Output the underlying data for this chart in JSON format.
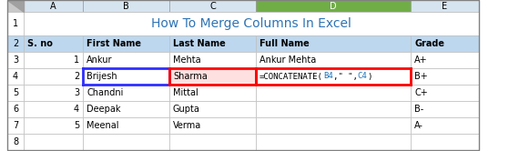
{
  "title": "How To Merge Columns In Excel",
  "title_color": "#2E74B5",
  "col_headers": [
    "S. no",
    "First Name",
    "Last Name",
    "Full Name",
    "Grade"
  ],
  "rows": [
    [
      "1",
      "Ankur",
      "Mehta",
      "Ankur Mehta",
      "A+"
    ],
    [
      "2",
      "Brijesh",
      "Sharma",
      "=CONCATENATE(B4,\" \",C4)",
      "B+"
    ],
    [
      "3",
      "Chandni",
      "Mittal",
      "",
      "C+"
    ],
    [
      "4",
      "Deepak",
      "Gupta",
      "",
      "B-"
    ],
    [
      "5",
      "Meenal",
      "Verma",
      "",
      "A-"
    ]
  ],
  "col_letters": [
    "A",
    "B",
    "C",
    "D",
    "E"
  ],
  "col_headers_list": [
    "S. no",
    "First Name",
    "Last Name",
    "Full Name",
    "Grade"
  ],
  "header_bg": "#BDD7EE",
  "grid_color": "#BFBFBF",
  "col_d_header_bg": "#70AD47",
  "col_letter_bg": "#D6E4F0",
  "row4_b_border": "#2E2EFF",
  "row4_c_bg": "#FFE0E0",
  "row4_c_border": "#FF0000",
  "formula_ref_color": "#1E72BB"
}
